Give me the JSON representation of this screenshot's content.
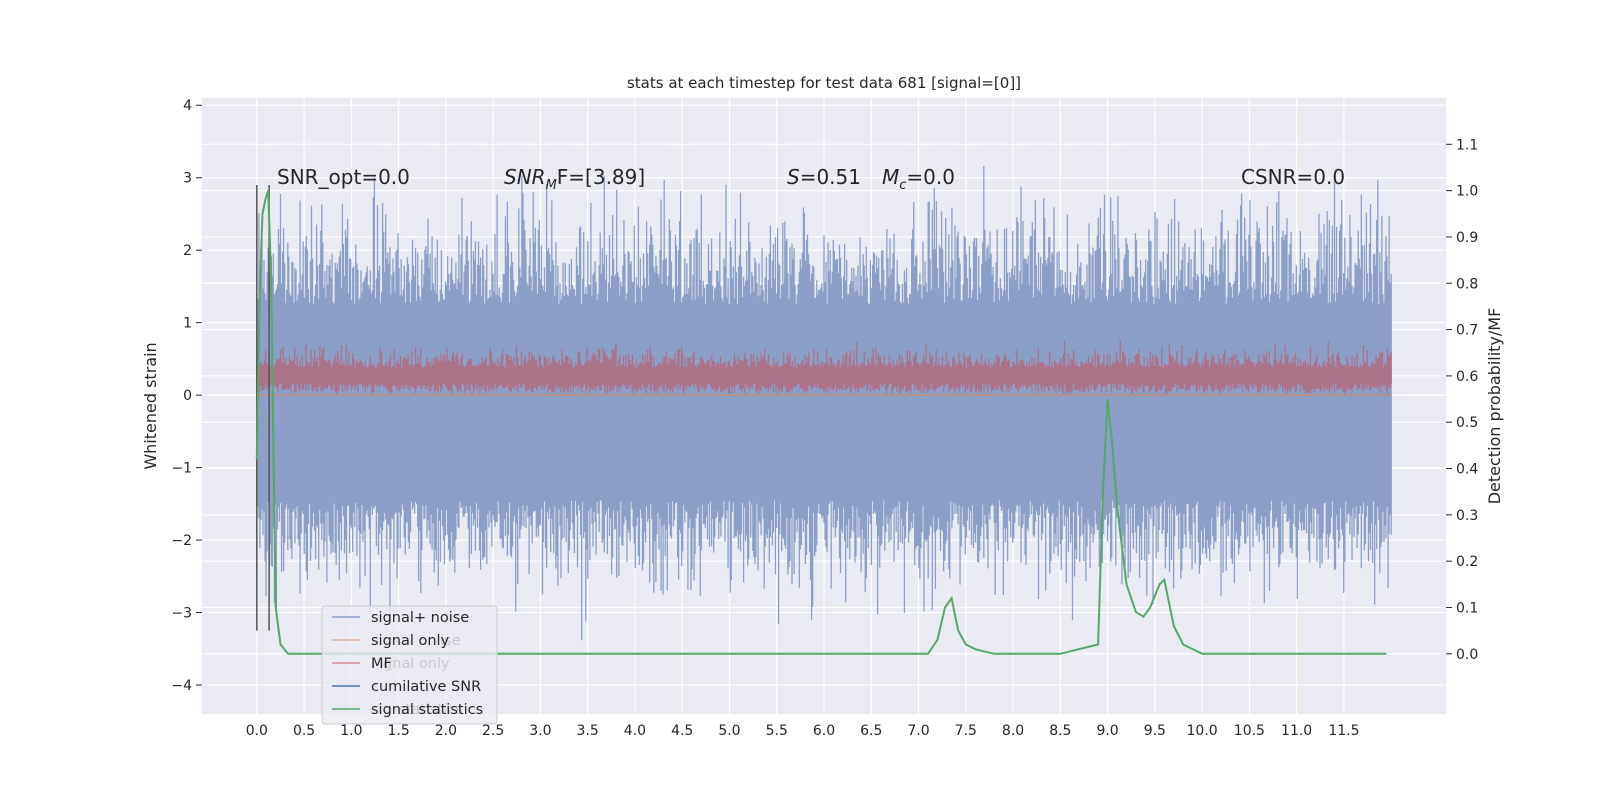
{
  "chart_data": {
    "type": "line",
    "title": "stats at each timestep for test data 681 [signal=[0]]",
    "xlabel": "",
    "ylabel": "Whitened strain",
    "y2label": "Detection probability/MF",
    "xlim": [
      -0.58,
      12.58
    ],
    "ylim": [
      -4.4,
      4.1
    ],
    "y2lim": [
      -0.13,
      1.2
    ],
    "x_ticks": [
      "0.0",
      "0.5",
      "1.0",
      "1.5",
      "2.0",
      "2.5",
      "3.0",
      "3.5",
      "4.0",
      "4.5",
      "5.0",
      "5.5",
      "6.0",
      "6.5",
      "7.0",
      "7.5",
      "8.0",
      "8.5",
      "9.0",
      "9.5",
      "10.0",
      "10.5",
      "11.0",
      "11.5"
    ],
    "y_ticks": [
      "−4",
      "−3",
      "−2",
      "−1",
      "0",
      "1",
      "2",
      "3",
      "4"
    ],
    "y2_ticks": [
      "0.0",
      "0.1",
      "0.2",
      "0.3",
      "0.4",
      "0.5",
      "0.6",
      "0.7",
      "0.8",
      "0.9",
      "1.0",
      "1.1"
    ],
    "annotations": {
      "snr_opt": "SNR_opt=0.0",
      "snr_mf_main": "SNR",
      "snr_mf_sub": "M",
      "snr_mf_tail": "F=[3.89]",
      "s_main": "S",
      "s_value": "=0.51",
      "mc_main": "M",
      "mc_sub": "c",
      "mc_value": "=0.0",
      "csnr": "CSNR=0.0"
    },
    "colors": {
      "signal_noise": "#8c9fc9",
      "signal_only": "#dd8452",
      "mf": "#c44e52",
      "cumulative_snr": "#4c72b0",
      "signal_statistics": "#55a868",
      "background": "#eaeaf2"
    },
    "series": [
      {
        "name": "signal+ noise",
        "description": "noise band",
        "approx_range": [
          -2.3,
          2.3
        ],
        "x_range": [
          0.0,
          12.0
        ]
      },
      {
        "name": "signal only",
        "values_constant": 0.0
      },
      {
        "name": "MF",
        "approx_range": [
          0.0,
          0.5
        ]
      },
      {
        "name": "cumilative SNR",
        "x": [
          0.0,
          0.13
        ],
        "note": "vertical markers near start"
      },
      {
        "name": "signal statistics",
        "x": [
          0.0,
          0.03,
          0.06,
          0.09,
          0.12,
          0.15,
          0.2,
          0.25,
          0.33,
          1.0,
          2.0,
          3.0,
          4.0,
          5.0,
          6.0,
          6.8,
          7.1,
          7.2,
          7.28,
          7.35,
          7.42,
          7.5,
          7.6,
          7.8,
          8.0,
          8.5,
          8.9,
          8.95,
          9.0,
          9.05,
          9.1,
          9.2,
          9.3,
          9.38,
          9.45,
          9.55,
          9.6,
          9.7,
          9.8,
          10.0,
          11.0,
          11.95
        ],
        "values": [
          0.42,
          0.78,
          0.95,
          0.98,
          1.0,
          0.82,
          0.1,
          0.02,
          0.0,
          0.0,
          0.0,
          0.0,
          0.0,
          0.0,
          0.0,
          0.0,
          0.0,
          0.03,
          0.1,
          0.12,
          0.05,
          0.02,
          0.01,
          0.0,
          0.0,
          0.0,
          0.02,
          0.35,
          0.55,
          0.45,
          0.32,
          0.15,
          0.09,
          0.08,
          0.1,
          0.15,
          0.16,
          0.06,
          0.02,
          0.0,
          0.0,
          0.0
        ]
      }
    ],
    "legend": {
      "placement": "bottom-left",
      "entries": [
        "signal+ noise",
        "signal only",
        "MF",
        "cumilative SNR",
        "signal statistics"
      ],
      "ghost_labels": [
        "ise",
        "gnal only",
        "statistics"
      ]
    }
  }
}
